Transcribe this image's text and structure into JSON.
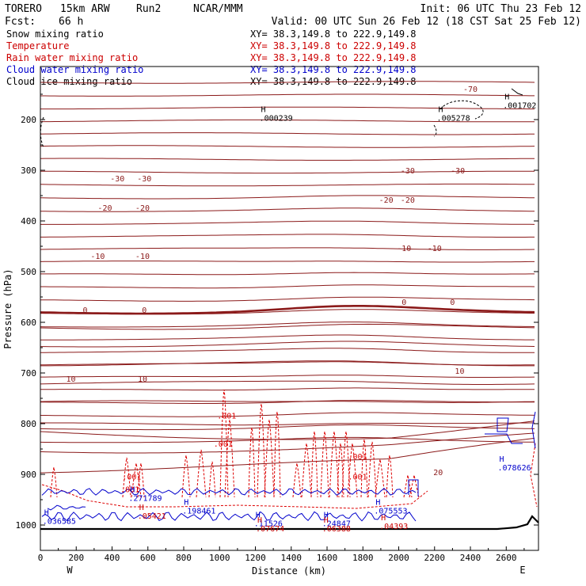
{
  "header": {
    "model": "TORERO",
    "resolution": "15km ARW",
    "run": "Run2",
    "org": "NCAR/MMM",
    "init": "Init: 06 UTC Thu 23 Feb 12",
    "fcst_label": "Fcst:",
    "fcst_value": "66 h",
    "valid": "Valid: 00 UTC Sun 26 Feb 12 (18 CST Sat 25 Feb 12)"
  },
  "fields": [
    {
      "name": "Snow mixing ratio",
      "color": "#000000",
      "xy": "XY=  38.3,149.8 to 222.9,149.8"
    },
    {
      "name": "Temperature",
      "color": "#cc0000",
      "xy": "XY=  38.3,149.8 to 222.9,149.8"
    },
    {
      "name": "Rain water mixing ratio",
      "color": "#cc0000",
      "xy": "XY=  38.3,149.8 to 222.9,149.8"
    },
    {
      "name": "Cloud water mixing ratio",
      "color": "#0000cc",
      "xy": "XY=  38.3,149.8 to 222.9,149.8"
    },
    {
      "name": "Cloud ice mixing ratio",
      "color": "#000000",
      "xy": "XY=  38.3,149.8 to 222.9,149.8"
    }
  ],
  "chart_data": {
    "type": "cross-section contour",
    "xlabel": "Distance (km)",
    "ylabel": "Pressure (hPa)",
    "xlim": [
      0,
      2780
    ],
    "ylim": [
      1015,
      100
    ],
    "x_ticks": [
      0,
      200,
      400,
      600,
      800,
      1000,
      1200,
      1400,
      1600,
      1800,
      2000,
      2200,
      2400,
      2600
    ],
    "y_ticks": [
      200,
      300,
      400,
      500,
      600,
      700,
      800,
      900,
      1000
    ],
    "end_labels": {
      "left": "W",
      "right": "E"
    },
    "temperature_isotherms": [
      {
        "value": -70,
        "label": "-70",
        "labels_at_km": [
          2400
        ]
      },
      {
        "value": -30,
        "label": "-30",
        "labels_at_km": [
          430,
          580,
          2050,
          2330
        ]
      },
      {
        "value": -20,
        "label": "-20",
        "labels_at_km": [
          360,
          570,
          1930,
          2050
        ]
      },
      {
        "value": -10,
        "label": "-10",
        "labels_at_km": [
          320,
          570,
          2030,
          2200
        ]
      },
      {
        "value": 0,
        "label": "0",
        "labels_at_km": [
          250,
          580,
          2030,
          2300
        ]
      },
      {
        "value": 10,
        "label": "10",
        "labels_at_km": [
          170,
          570,
          2340
        ]
      },
      {
        "value": 20,
        "label": "20",
        "labels_at_km": [
          2220
        ]
      }
    ],
    "highs": [
      {
        "label": "H",
        "value": ".000239",
        "x_km": 1240,
        "p_hpa": 190,
        "color": "#000000"
      },
      {
        "label": "H",
        "value": ".005278",
        "x_km": 2230,
        "p_hpa": 190,
        "color": "#000000"
      },
      {
        "label": "H",
        "value": ".001702",
        "x_km": 2600,
        "p_hpa": 165,
        "color": "#000000"
      },
      {
        "label": "H",
        "value": ".078626",
        "x_km": 2570,
        "p_hpa": 880,
        "color": "#0000cc"
      },
      {
        "label": "H",
        "value": ".271789",
        "x_km": 510,
        "p_hpa": 940,
        "color": "#0000cc"
      },
      {
        "label": "H",
        "value": ".198461",
        "x_km": 810,
        "p_hpa": 965,
        "color": "#0000cc"
      },
      {
        "label": "H",
        "value": ".036585",
        "x_km": 30,
        "p_hpa": 985,
        "color": "#0000cc"
      },
      {
        "label": "H",
        "value": ".11526",
        "x_km": 1210,
        "p_hpa": 990,
        "color": "#0000cc"
      },
      {
        "label": "H",
        "value": ".24847",
        "x_km": 1590,
        "p_hpa": 990,
        "color": "#0000cc"
      },
      {
        "label": "H",
        "value": ".075553",
        "x_km": 1880,
        "p_hpa": 965,
        "color": "#0000cc"
      },
      {
        "label": "H",
        "value": ".05421",
        "x_km": 560,
        "p_hpa": 975,
        "color": "#cc0000"
      },
      {
        "label": "H",
        "value": ".07674",
        "x_km": 1220,
        "p_hpa": 1000,
        "color": "#cc0000"
      },
      {
        "label": "H",
        "value": ".06388",
        "x_km": 1590,
        "p_hpa": 1000,
        "color": "#cc0000"
      },
      {
        "label": "H",
        "value": ".04393",
        "x_km": 1910,
        "p_hpa": 995,
        "color": "#cc0000"
      }
    ],
    "rain_labels": [
      {
        "label": ".001",
        "x_km": 1040,
        "p_hpa": 790
      },
      {
        "label": ".001",
        "x_km": 1020,
        "p_hpa": 845
      },
      {
        "label": ".001",
        "x_km": 1770,
        "p_hpa": 870
      },
      {
        "label": ".001",
        "x_km": 1770,
        "p_hpa": 910
      },
      {
        "label": ".001",
        "x_km": 510,
        "p_hpa": 910
      },
      {
        "label": ".001",
        "x_km": 500,
        "p_hpa": 935
      }
    ]
  }
}
